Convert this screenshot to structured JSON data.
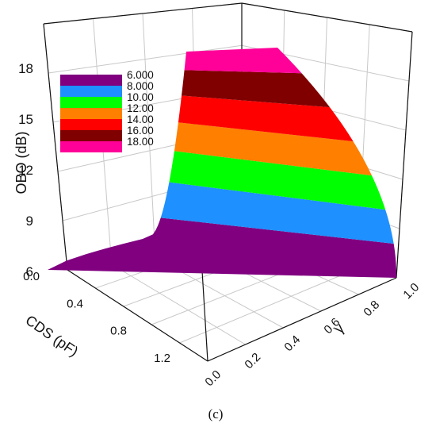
{
  "chart_data": {
    "type": "3d-surface",
    "title": "",
    "xlabel": "CDS (pF)",
    "ylabel": "γ",
    "zlabel": "OBO (dB)",
    "x_ticks": [
      "0.0",
      "0.4",
      "0.8",
      "1.2"
    ],
    "y_ticks": [
      "0.0",
      "0.2",
      "0.4",
      "0.6",
      "0.8",
      "1.0"
    ],
    "z_ticks": [
      "6",
      "9",
      "12",
      "15",
      "18"
    ],
    "zlim": [
      6,
      18
    ],
    "legend": {
      "placement": "top-left",
      "entries": [
        {
          "label": "6.000",
          "color": "#800080"
        },
        {
          "label": "8.000",
          "color": "#1e90ff"
        },
        {
          "label": "10.00",
          "color": "#00ff00"
        },
        {
          "label": "12.00",
          "color": "#ff7f00"
        },
        {
          "label": "14.00",
          "color": "#ff0000"
        },
        {
          "label": "16.00",
          "color": "#800000"
        },
        {
          "label": "18.00",
          "color": "#ff0099"
        }
      ]
    },
    "surface_bands": [
      {
        "from": 6,
        "to": 8,
        "color": "#800080"
      },
      {
        "from": 8,
        "to": 10,
        "color": "#1e90ff"
      },
      {
        "from": 10,
        "to": 12,
        "color": "#00ff00"
      },
      {
        "from": 12,
        "to": 14,
        "color": "#ff7f00"
      },
      {
        "from": 14,
        "to": 16,
        "color": "#ff0000"
      },
      {
        "from": 16,
        "to": 18,
        "color": "#800000"
      },
      {
        "from": 18,
        "to": 19.5,
        "color": "#ff0099"
      }
    ],
    "grid": true
  },
  "caption": "(c)"
}
